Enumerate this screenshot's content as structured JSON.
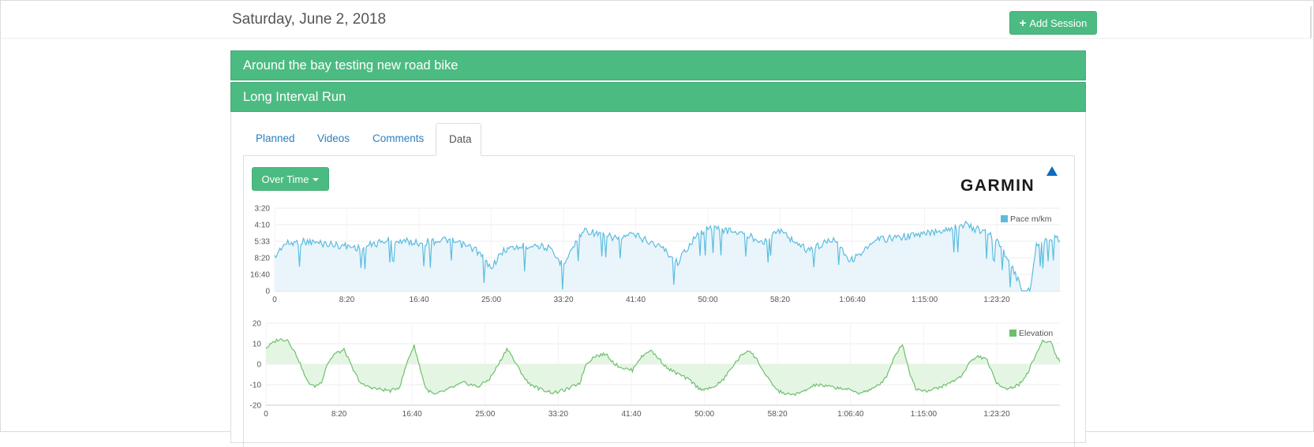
{
  "header": {
    "date": "Saturday, June 2, 2018",
    "add_session_label": "Add Session"
  },
  "sessions": [
    {
      "title": "Around the bay testing new road bike"
    },
    {
      "title": "Long Interval Run"
    }
  ],
  "tabs": [
    {
      "label": "Planned",
      "active": false
    },
    {
      "label": "Videos",
      "active": false
    },
    {
      "label": "Comments",
      "active": false
    },
    {
      "label": "Data",
      "active": true
    }
  ],
  "data_panel": {
    "view_mode": "Over Time",
    "brand": "GARMIN",
    "brand_color": "#0a6cbf"
  },
  "colors": {
    "accent": "#4cbb82",
    "pace_line": "#5bbcdf",
    "pace_fill": "#e9f5fb",
    "elevation_line": "#6cc06c",
    "elevation_fill": "#e5f5e3"
  },
  "chart_data": [
    {
      "type": "area",
      "series": [
        {
          "name": "Pace m/km"
        }
      ],
      "x_ticks": [
        "0",
        "8:20",
        "16:40",
        "25:00",
        "33:20",
        "41:40",
        "50:00",
        "58:20",
        "1:06:40",
        "1:15:00",
        "1:23:20"
      ],
      "y_ticks": [
        "3:20",
        "4:10",
        "5:33",
        "8:20",
        "16:40",
        "0"
      ],
      "x_range_seconds": [
        0,
        5460
      ],
      "approx_pace_level": [
        [
          0,
          3.0
        ],
        [
          60,
          2.2
        ],
        [
          200,
          2.0
        ],
        [
          400,
          2.2
        ],
        [
          600,
          2.4
        ],
        [
          800,
          1.9
        ],
        [
          1000,
          2.1
        ],
        [
          1100,
          2.0
        ],
        [
          1200,
          1.9
        ],
        [
          1400,
          2.5
        ],
        [
          1500,
          3.6
        ],
        [
          1600,
          2.5
        ],
        [
          1800,
          2.2
        ],
        [
          1900,
          2.4
        ],
        [
          2000,
          3.4
        ],
        [
          2100,
          2.0
        ],
        [
          2150,
          1.3
        ],
        [
          2300,
          1.7
        ],
        [
          2400,
          1.8
        ],
        [
          2500,
          1.6
        ],
        [
          2700,
          2.4
        ],
        [
          2800,
          3.3
        ],
        [
          2900,
          2.0
        ],
        [
          3000,
          1.2
        ],
        [
          3200,
          1.4
        ],
        [
          3400,
          2.0
        ],
        [
          3500,
          1.3
        ],
        [
          3700,
          2.5
        ],
        [
          3800,
          2.2
        ],
        [
          3900,
          1.8
        ],
        [
          4000,
          3.2
        ],
        [
          4200,
          1.9
        ],
        [
          4300,
          1.8
        ],
        [
          4500,
          1.6
        ],
        [
          4700,
          1.2
        ],
        [
          4800,
          1.0
        ],
        [
          5000,
          1.7
        ],
        [
          5100,
          3.0
        ],
        [
          5200,
          5.0
        ],
        [
          5250,
          5.0
        ],
        [
          5300,
          2.1
        ],
        [
          5460,
          1.8
        ]
      ]
    },
    {
      "type": "area",
      "series": [
        {
          "name": "Elevation"
        }
      ],
      "x_ticks": [
        "0",
        "8:20",
        "16:40",
        "25:00",
        "33:20",
        "41:40",
        "50:00",
        "58:20",
        "1:06:40",
        "1:15:00",
        "1:23:20"
      ],
      "y_ticks": [
        "20",
        "10",
        "0",
        "-10",
        "-20"
      ],
      "ylim": [
        -20,
        20
      ],
      "x_range_seconds": [
        0,
        5460
      ],
      "approx_values": [
        [
          0,
          8
        ],
        [
          80,
          12
        ],
        [
          150,
          12
        ],
        [
          220,
          3
        ],
        [
          280,
          -8
        ],
        [
          330,
          -11
        ],
        [
          380,
          -9
        ],
        [
          420,
          0
        ],
        [
          470,
          5
        ],
        [
          540,
          7
        ],
        [
          600,
          -3
        ],
        [
          660,
          -10
        ],
        [
          760,
          -12
        ],
        [
          860,
          -13
        ],
        [
          920,
          -11
        ],
        [
          980,
          3
        ],
        [
          1020,
          9
        ],
        [
          1060,
          -2
        ],
        [
          1100,
          -12
        ],
        [
          1160,
          -15
        ],
        [
          1260,
          -12
        ],
        [
          1360,
          -9
        ],
        [
          1460,
          -11
        ],
        [
          1540,
          -7
        ],
        [
          1600,
          0
        ],
        [
          1660,
          8
        ],
        [
          1720,
          0
        ],
        [
          1800,
          -9
        ],
        [
          1880,
          -12
        ],
        [
          1980,
          -14
        ],
        [
          2080,
          -12
        ],
        [
          2160,
          -9
        ],
        [
          2200,
          0
        ],
        [
          2260,
          4
        ],
        [
          2340,
          5
        ],
        [
          2400,
          0
        ],
        [
          2460,
          -2
        ],
        [
          2520,
          -3
        ],
        [
          2560,
          2
        ],
        [
          2640,
          7
        ],
        [
          2700,
          3
        ],
        [
          2760,
          -2
        ],
        [
          2840,
          -5
        ],
        [
          2920,
          -8
        ],
        [
          2980,
          -12
        ],
        [
          3060,
          -12
        ],
        [
          3140,
          -8
        ],
        [
          3220,
          0
        ],
        [
          3280,
          5
        ],
        [
          3320,
          7
        ],
        [
          3380,
          2
        ],
        [
          3440,
          -6
        ],
        [
          3520,
          -13
        ],
        [
          3600,
          -15
        ],
        [
          3680,
          -14
        ],
        [
          3780,
          -10
        ],
        [
          3880,
          -11
        ],
        [
          3980,
          -12
        ],
        [
          4080,
          -14
        ],
        [
          4180,
          -12
        ],
        [
          4260,
          -7
        ],
        [
          4330,
          5
        ],
        [
          4380,
          10
        ],
        [
          4420,
          -3
        ],
        [
          4470,
          -12
        ],
        [
          4560,
          -13
        ],
        [
          4680,
          -10
        ],
        [
          4780,
          -6
        ],
        [
          4840,
          1
        ],
        [
          4900,
          4
        ],
        [
          4960,
          2
        ],
        [
          5020,
          -9
        ],
        [
          5100,
          -12
        ],
        [
          5180,
          -10
        ],
        [
          5240,
          -4
        ],
        [
          5290,
          4
        ],
        [
          5340,
          11
        ],
        [
          5400,
          11
        ],
        [
          5440,
          3
        ],
        [
          5460,
          2
        ]
      ]
    }
  ]
}
